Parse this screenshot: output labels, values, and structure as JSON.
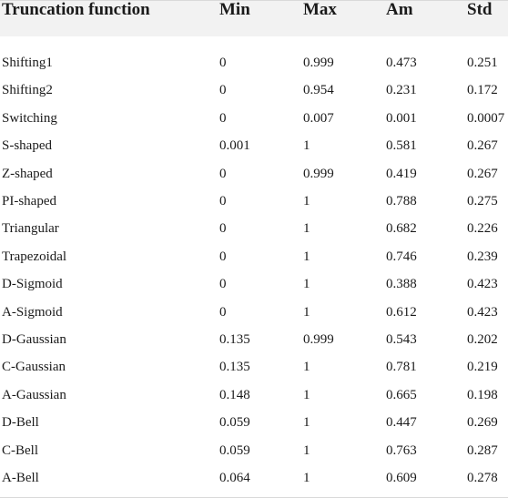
{
  "table": {
    "headers": [
      "Truncation function",
      "Min",
      "Max",
      "Am",
      "Std"
    ],
    "rows": [
      [
        "Shifting1",
        "0",
        "0.999",
        "0.473",
        "0.251"
      ],
      [
        "Shifting2",
        "0",
        "0.954",
        "0.231",
        "0.172"
      ],
      [
        "Switching",
        "0",
        "0.007",
        "0.001",
        "0.0007"
      ],
      [
        "S-shaped",
        "0.001",
        "1",
        "0.581",
        "0.267"
      ],
      [
        "Z-shaped",
        "0",
        "0.999",
        "0.419",
        "0.267"
      ],
      [
        "PI-shaped",
        "0",
        "1",
        "0.788",
        "0.275"
      ],
      [
        "Triangular",
        "0",
        "1",
        "0.682",
        "0.226"
      ],
      [
        "Trapezoidal",
        "0",
        "1",
        "0.746",
        "0.239"
      ],
      [
        "D-Sigmoid",
        "0",
        "1",
        "0.388",
        "0.423"
      ],
      [
        "A-Sigmoid",
        "0",
        "1",
        "0.612",
        "0.423"
      ],
      [
        "D-Gaussian",
        "0.135",
        "0.999",
        "0.543",
        "0.202"
      ],
      [
        "C-Gaussian",
        "0.135",
        "1",
        "0.781",
        "0.219"
      ],
      [
        "A-Gaussian",
        "0.148",
        "1",
        "0.665",
        "0.198"
      ],
      [
        "D-Bell",
        "0.059",
        "1",
        "0.447",
        "0.269"
      ],
      [
        "C-Bell",
        "0.059",
        "1",
        "0.763",
        "0.287"
      ],
      [
        "A-Bell",
        "0.064",
        "1",
        "0.609",
        "0.278"
      ]
    ]
  }
}
